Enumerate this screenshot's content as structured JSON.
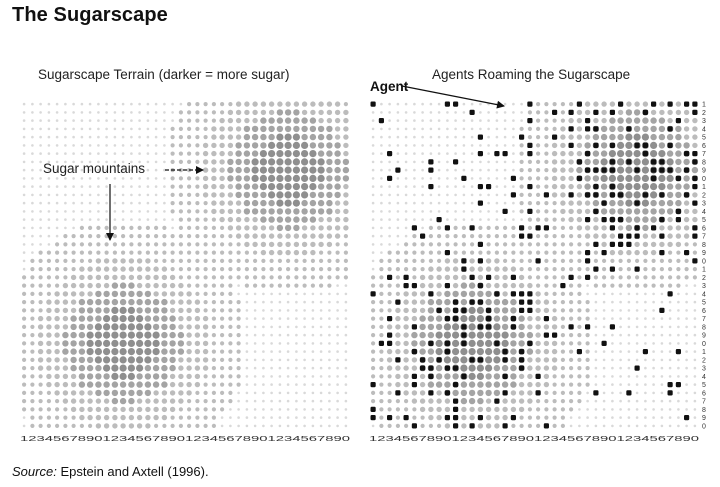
{
  "page": {
    "title": "The Sugarscape"
  },
  "left_panel": {
    "title": "Sugarscape Terrain (darker = more sugar)",
    "annotation": "Sugar mountains"
  },
  "right_panel": {
    "title": "Agents Roaming the Sugarscape",
    "annotation": "Agent"
  },
  "axis": {
    "tick_labels": "1234567890123456789012345678901234567890",
    "side_labels": "1234567890123456789012345678901234567890"
  },
  "grid": {
    "columns": 40,
    "rows": 40,
    "mountain_centers": [
      {
        "col": 32,
        "row": 8
      },
      {
        "col": 12,
        "row": 29
      }
    ]
  },
  "caption": {
    "source_label": "Source:",
    "source_text": "Epstein and Axtell (1996)."
  },
  "colors": {
    "low_sugar": "#d9d9d9",
    "mid_sugar": "#bcbcbc",
    "high_sugar": "#a4a4a4",
    "peak_sugar": "#8f8f8f",
    "agent": "#111111",
    "text": "#111111"
  }
}
